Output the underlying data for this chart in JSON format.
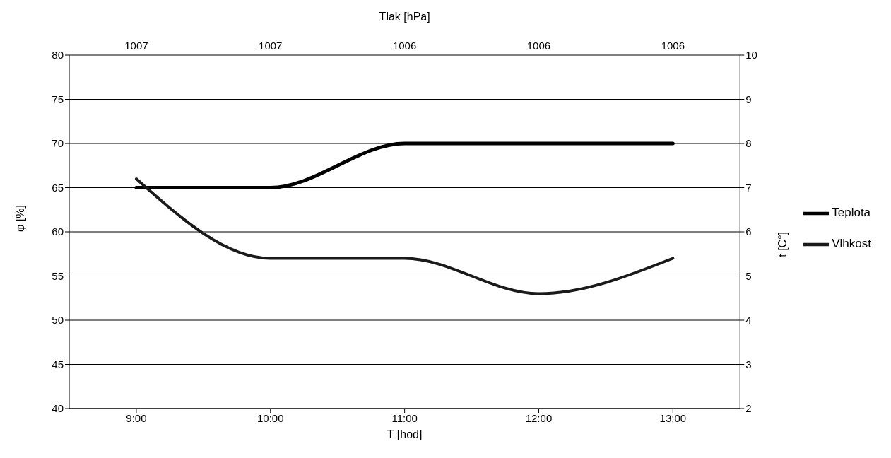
{
  "chart_data": {
    "type": "line",
    "categories": [
      "9:00",
      "10:00",
      "11:00",
      "12:00",
      "13:00"
    ],
    "xlabel": "T [hod]",
    "ylabel": "φ [%]",
    "y2label": "t [C°]",
    "x2label": "Tlak [hPa]",
    "annotations": [
      "1007",
      "1007",
      "1006",
      "1006",
      "1006"
    ],
    "series": [
      {
        "name": "Teplota",
        "color": "#000000",
        "axis": "y2",
        "values": [
          7,
          7,
          8,
          8,
          8
        ]
      },
      {
        "name": "Vlhkost",
        "color": "#1a1a1a",
        "values": [
          66,
          57,
          57,
          53,
          57
        ]
      }
    ],
    "ylim": [
      40,
      80
    ],
    "yticks": [
      40,
      45,
      50,
      55,
      60,
      65,
      70,
      75,
      80
    ],
    "y2lim": [
      2,
      10
    ],
    "y2ticks": [
      2,
      3,
      4,
      5,
      6,
      7,
      8,
      9,
      10
    ],
    "grid": "y",
    "legend": "right",
    "marker": "none",
    "line_style": "solid"
  }
}
